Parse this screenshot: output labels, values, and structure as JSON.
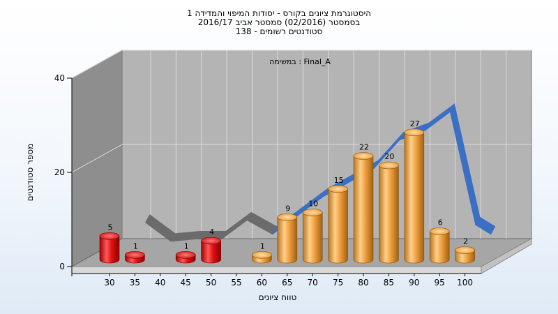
{
  "chart_data": {
    "type": "bar",
    "title": [
      "היסטוגרמת ציונים בקורס - יסודות המיפוי והמדידה 1",
      "בסמסטר  (02/2016)  סמסטר אביב 2016/17",
      "סטודנטים רשומים - 138"
    ],
    "series_label": "במשימה : Final_A",
    "xlabel": "טווח ציונים",
    "ylabel": "מספר סטודנטים",
    "yticks": [
      0,
      20,
      40
    ],
    "ylim": [
      0,
      40
    ],
    "x_ticks": [
      30,
      35,
      40,
      45,
      50,
      55,
      60,
      65,
      70,
      75,
      80,
      85,
      90,
      95,
      100
    ],
    "bars": [
      {
        "x": 30,
        "value": 5,
        "color": "red"
      },
      {
        "x": 35,
        "value": 1,
        "color": "red"
      },
      {
        "x": 45,
        "value": 1,
        "color": "red"
      },
      {
        "x": 50,
        "value": 4,
        "color": "red"
      },
      {
        "x": 60,
        "value": 1,
        "color": "orange"
      },
      {
        "x": 65,
        "value": 9,
        "color": "orange"
      },
      {
        "x": 70,
        "value": 10,
        "color": "orange"
      },
      {
        "x": 75,
        "value": 15,
        "color": "orange"
      },
      {
        "x": 80,
        "value": 22,
        "color": "orange"
      },
      {
        "x": 85,
        "value": 20,
        "color": "orange"
      },
      {
        "x": 90,
        "value": 27,
        "color": "orange"
      },
      {
        "x": 95,
        "value": 6,
        "color": "orange"
      },
      {
        "x": 100,
        "value": 2,
        "color": "orange"
      }
    ],
    "distribution_curve": [
      {
        "x": 35,
        "y": 8.5
      },
      {
        "x": 40,
        "y": 4.5
      },
      {
        "x": 45,
        "y": 5
      },
      {
        "x": 50,
        "y": 5
      },
      {
        "x": 55,
        "y": 9
      },
      {
        "x": 60,
        "y": 6
      },
      {
        "x": 65,
        "y": 10
      },
      {
        "x": 70,
        "y": 14
      },
      {
        "x": 75,
        "y": 17
      },
      {
        "x": 80,
        "y": 20
      },
      {
        "x": 85,
        "y": 26
      },
      {
        "x": 90,
        "y": 28
      },
      {
        "x": 95,
        "y": 32
      },
      {
        "x": 100,
        "y": 8
      },
      {
        "x": 103,
        "y": 6
      }
    ],
    "colors": {
      "fail_bar": "#e01010",
      "pass_bar": "#f0a040",
      "curve_fail": "#6b6b6b",
      "curve_pass": "#3a6fc4",
      "back_wall": "#b4b4b4",
      "side_wall": "#8e8e8e",
      "floor": "#a6a6a6"
    },
    "grid": true
  }
}
